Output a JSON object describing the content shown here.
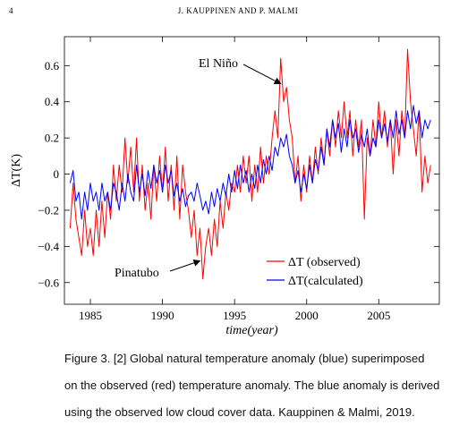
{
  "header": {
    "page_number": "4",
    "running_title": "J. KAUPPINEN AND P. MALMI"
  },
  "chart_data": {
    "type": "line",
    "xlabel": "time(year)",
    "ylabel": "ΔT(K)",
    "xlim": [
      1983.2,
      2009.2
    ],
    "ylim": [
      -0.72,
      0.76
    ],
    "xticks": [
      1985,
      1990,
      1995,
      2000,
      2005
    ],
    "yticks": [
      -0.6,
      -0.4,
      -0.2,
      0,
      0.2,
      0.4,
      0.6
    ],
    "ytick_labels": [
      "−0.6",
      "−0.4",
      "−0.2",
      "0",
      "0.2",
      "0.4",
      "0.6"
    ],
    "legend_position": "bottom-right",
    "series": [
      {
        "name": "ΔT (observed)",
        "color": "#ff0000",
        "points": [
          [
            1983.6,
            -0.3
          ],
          [
            1983.8,
            -0.05
          ],
          [
            1984.0,
            -0.25
          ],
          [
            1984.2,
            -0.35
          ],
          [
            1984.4,
            -0.45
          ],
          [
            1984.6,
            -0.2
          ],
          [
            1984.8,
            -0.4
          ],
          [
            1985.0,
            -0.3
          ],
          [
            1985.2,
            -0.45
          ],
          [
            1985.4,
            -0.2
          ],
          [
            1985.6,
            -0.4
          ],
          [
            1985.8,
            -0.15
          ],
          [
            1986.0,
            -0.35
          ],
          [
            1986.2,
            -0.1
          ],
          [
            1986.4,
            -0.25
          ],
          [
            1986.6,
            0.05
          ],
          [
            1986.8,
            -0.15
          ],
          [
            1987.0,
            0.05
          ],
          [
            1987.2,
            -0.1
          ],
          [
            1987.4,
            0.2
          ],
          [
            1987.6,
            -0.05
          ],
          [
            1987.8,
            0.15
          ],
          [
            1988.0,
            -0.1
          ],
          [
            1988.2,
            0.2
          ],
          [
            1988.4,
            -0.15
          ],
          [
            1988.6,
            0.05
          ],
          [
            1988.8,
            -0.2
          ],
          [
            1989.0,
            -0.05
          ],
          [
            1989.2,
            -0.25
          ],
          [
            1989.4,
            0.05
          ],
          [
            1989.6,
            -0.15
          ],
          [
            1989.8,
            0.1
          ],
          [
            1990.0,
            -0.1
          ],
          [
            1990.2,
            0.15
          ],
          [
            1990.4,
            -0.15
          ],
          [
            1990.6,
            0.05
          ],
          [
            1990.8,
            -0.2
          ],
          [
            1991.0,
            0.1
          ],
          [
            1991.2,
            -0.25
          ],
          [
            1991.4,
            0.05
          ],
          [
            1991.6,
            -0.1
          ],
          [
            1991.8,
            -0.2
          ],
          [
            1992.0,
            -0.35
          ],
          [
            1992.2,
            -0.2
          ],
          [
            1992.4,
            -0.45
          ],
          [
            1992.6,
            -0.3
          ],
          [
            1992.8,
            -0.58
          ],
          [
            1993.0,
            -0.4
          ],
          [
            1993.2,
            -0.3
          ],
          [
            1993.4,
            -0.45
          ],
          [
            1993.6,
            -0.25
          ],
          [
            1993.8,
            -0.4
          ],
          [
            1994.0,
            -0.15
          ],
          [
            1994.2,
            -0.3
          ],
          [
            1994.4,
            -0.1
          ],
          [
            1994.6,
            -0.2
          ],
          [
            1994.8,
            -0.05
          ],
          [
            1995.0,
            -0.1
          ],
          [
            1995.2,
            0.05
          ],
          [
            1995.4,
            -0.1
          ],
          [
            1995.6,
            0.1
          ],
          [
            1995.8,
            -0.05
          ],
          [
            1996.0,
            0.1
          ],
          [
            1996.2,
            -0.15
          ],
          [
            1996.4,
            0.05
          ],
          [
            1996.6,
            -0.1
          ],
          [
            1996.8,
            0.15
          ],
          [
            1997.0,
            -0.05
          ],
          [
            1997.2,
            0.1
          ],
          [
            1997.4,
            0.0
          ],
          [
            1997.6,
            0.2
          ],
          [
            1997.8,
            0.35
          ],
          [
            1998.0,
            0.2
          ],
          [
            1998.2,
            0.64
          ],
          [
            1998.4,
            0.4
          ],
          [
            1998.6,
            0.48
          ],
          [
            1998.8,
            0.3
          ],
          [
            1999.0,
            0.2
          ],
          [
            1999.2,
            -0.05
          ],
          [
            1999.4,
            0.1
          ],
          [
            1999.6,
            -0.15
          ],
          [
            1999.8,
            0.05
          ],
          [
            2000.0,
            -0.1
          ],
          [
            2000.2,
            0.1
          ],
          [
            2000.4,
            -0.05
          ],
          [
            2000.6,
            0.15
          ],
          [
            2000.8,
            0.0
          ],
          [
            2001.0,
            0.2
          ],
          [
            2001.2,
            0.05
          ],
          [
            2001.4,
            0.25
          ],
          [
            2001.6,
            0.1
          ],
          [
            2001.8,
            0.3
          ],
          [
            2002.0,
            0.15
          ],
          [
            2002.2,
            0.35
          ],
          [
            2002.4,
            0.2
          ],
          [
            2002.6,
            0.4
          ],
          [
            2002.8,
            0.2
          ],
          [
            2003.0,
            0.35
          ],
          [
            2003.2,
            0.1
          ],
          [
            2003.4,
            0.3
          ],
          [
            2003.6,
            0.15
          ],
          [
            2003.8,
            0.3
          ],
          [
            2004.0,
            -0.25
          ],
          [
            2004.2,
            0.2
          ],
          [
            2004.4,
            0.1
          ],
          [
            2004.6,
            0.3
          ],
          [
            2004.8,
            0.15
          ],
          [
            2005.0,
            0.4
          ],
          [
            2005.2,
            0.2
          ],
          [
            2005.4,
            0.35
          ],
          [
            2005.6,
            0.15
          ],
          [
            2005.8,
            0.3
          ],
          [
            2006.0,
            0.0
          ],
          [
            2006.2,
            0.3
          ],
          [
            2006.4,
            0.1
          ],
          [
            2006.6,
            0.35
          ],
          [
            2006.8,
            0.2
          ],
          [
            2007.0,
            0.69
          ],
          [
            2007.2,
            0.4
          ],
          [
            2007.4,
            0.25
          ],
          [
            2007.6,
            0.1
          ],
          [
            2007.8,
            0.35
          ],
          [
            2008.0,
            -0.1
          ],
          [
            2008.2,
            0.1
          ],
          [
            2008.4,
            -0.05
          ],
          [
            2008.6,
            0.05
          ]
        ]
      },
      {
        "name": "ΔT(calculated)",
        "color": "#0000ff",
        "points": [
          [
            1983.6,
            -0.05
          ],
          [
            1983.8,
            0.02
          ],
          [
            1984.0,
            -0.15
          ],
          [
            1984.2,
            -0.1
          ],
          [
            1984.4,
            -0.25
          ],
          [
            1984.6,
            -0.1
          ],
          [
            1984.8,
            -0.2
          ],
          [
            1985.0,
            -0.05
          ],
          [
            1985.2,
            -0.15
          ],
          [
            1985.4,
            -0.1
          ],
          [
            1985.6,
            -0.2
          ],
          [
            1985.8,
            -0.05
          ],
          [
            1986.0,
            -0.15
          ],
          [
            1986.2,
            -0.1
          ],
          [
            1986.4,
            -0.2
          ],
          [
            1986.6,
            -0.05
          ],
          [
            1986.8,
            -0.1
          ],
          [
            1987.0,
            -0.2
          ],
          [
            1987.2,
            -0.05
          ],
          [
            1987.4,
            -0.15
          ],
          [
            1987.6,
            0.0
          ],
          [
            1987.8,
            -0.1
          ],
          [
            1988.0,
            -0.15
          ],
          [
            1988.2,
            0.05
          ],
          [
            1988.4,
            -0.1
          ],
          [
            1988.6,
            0.0
          ],
          [
            1988.8,
            -0.12
          ],
          [
            1989.0,
            0.02
          ],
          [
            1989.2,
            -0.08
          ],
          [
            1989.4,
            0.05
          ],
          [
            1989.6,
            -0.05
          ],
          [
            1989.8,
            0.02
          ],
          [
            1990.0,
            -0.1
          ],
          [
            1990.2,
            0.05
          ],
          [
            1990.4,
            -0.05
          ],
          [
            1990.6,
            0.02
          ],
          [
            1990.8,
            -0.12
          ],
          [
            1991.0,
            -0.05
          ],
          [
            1991.2,
            -0.15
          ],
          [
            1991.4,
            -0.08
          ],
          [
            1991.6,
            -0.18
          ],
          [
            1991.8,
            -0.12
          ],
          [
            1992.0,
            -0.1
          ],
          [
            1992.2,
            -0.15
          ],
          [
            1992.4,
            -0.05
          ],
          [
            1992.6,
            -0.12
          ],
          [
            1992.8,
            -0.2
          ],
          [
            1993.0,
            -0.15
          ],
          [
            1993.2,
            -0.22
          ],
          [
            1993.4,
            -0.1
          ],
          [
            1993.6,
            -0.18
          ],
          [
            1993.8,
            -0.08
          ],
          [
            1994.0,
            -0.15
          ],
          [
            1994.2,
            -0.05
          ],
          [
            1994.4,
            -0.12
          ],
          [
            1994.6,
            0.0
          ],
          [
            1994.8,
            -0.1
          ],
          [
            1995.0,
            0.02
          ],
          [
            1995.2,
            -0.08
          ],
          [
            1995.4,
            0.05
          ],
          [
            1995.6,
            -0.05
          ],
          [
            1995.8,
            0.02
          ],
          [
            1996.0,
            -0.1
          ],
          [
            1996.2,
            0.0
          ],
          [
            1996.4,
            -0.08
          ],
          [
            1996.6,
            0.05
          ],
          [
            1996.8,
            -0.05
          ],
          [
            1997.0,
            0.08
          ],
          [
            1997.2,
            0.0
          ],
          [
            1997.4,
            0.1
          ],
          [
            1997.6,
            0.02
          ],
          [
            1997.8,
            0.15
          ],
          [
            1998.0,
            0.1
          ],
          [
            1998.2,
            0.2
          ],
          [
            1998.4,
            0.15
          ],
          [
            1998.6,
            0.22
          ],
          [
            1998.8,
            0.1
          ],
          [
            1999.0,
            0.05
          ],
          [
            1999.2,
            -0.05
          ],
          [
            1999.4,
            0.02
          ],
          [
            1999.6,
            -0.1
          ],
          [
            1999.8,
            0.0
          ],
          [
            2000.0,
            -0.08
          ],
          [
            2000.2,
            0.05
          ],
          [
            2000.4,
            -0.05
          ],
          [
            2000.6,
            0.08
          ],
          [
            2000.8,
            0.02
          ],
          [
            2001.0,
            0.15
          ],
          [
            2001.2,
            0.05
          ],
          [
            2001.4,
            0.25
          ],
          [
            2001.6,
            0.15
          ],
          [
            2001.8,
            0.3
          ],
          [
            2002.0,
            0.2
          ],
          [
            2002.2,
            0.28
          ],
          [
            2002.4,
            0.12
          ],
          [
            2002.6,
            0.25
          ],
          [
            2002.8,
            0.15
          ],
          [
            2003.0,
            0.3
          ],
          [
            2003.2,
            0.2
          ],
          [
            2003.4,
            0.25
          ],
          [
            2003.6,
            0.12
          ],
          [
            2003.8,
            0.22
          ],
          [
            2004.0,
            0.15
          ],
          [
            2004.2,
            0.25
          ],
          [
            2004.4,
            0.1
          ],
          [
            2004.6,
            0.2
          ],
          [
            2004.8,
            0.15
          ],
          [
            2005.0,
            0.3
          ],
          [
            2005.2,
            0.2
          ],
          [
            2005.4,
            0.28
          ],
          [
            2005.6,
            0.18
          ],
          [
            2005.8,
            0.3
          ],
          [
            2006.0,
            0.2
          ],
          [
            2006.2,
            0.35
          ],
          [
            2006.4,
            0.22
          ],
          [
            2006.6,
            0.3
          ],
          [
            2006.8,
            0.2
          ],
          [
            2007.0,
            0.35
          ],
          [
            2007.2,
            0.25
          ],
          [
            2007.4,
            0.38
          ],
          [
            2007.6,
            0.28
          ],
          [
            2007.8,
            0.35
          ],
          [
            2008.0,
            0.2
          ],
          [
            2008.2,
            0.3
          ],
          [
            2008.4,
            0.25
          ],
          [
            2008.6,
            0.3
          ]
        ]
      }
    ],
    "annotations": [
      {
        "text": "El Niño",
        "target": [
          1998.2,
          0.5
        ]
      },
      {
        "text": "Pinatubo",
        "target": [
          1992.6,
          -0.48
        ]
      }
    ]
  },
  "caption": {
    "lines": [
      "Figure 3. [2] Global natural temperature anomaly (blue) superimposed",
      "on the observed (red) temperature anomaly. The blue anomaly is derived",
      "using the observed low cloud cover data.  Kauppinen & Malmi, 2019."
    ]
  }
}
